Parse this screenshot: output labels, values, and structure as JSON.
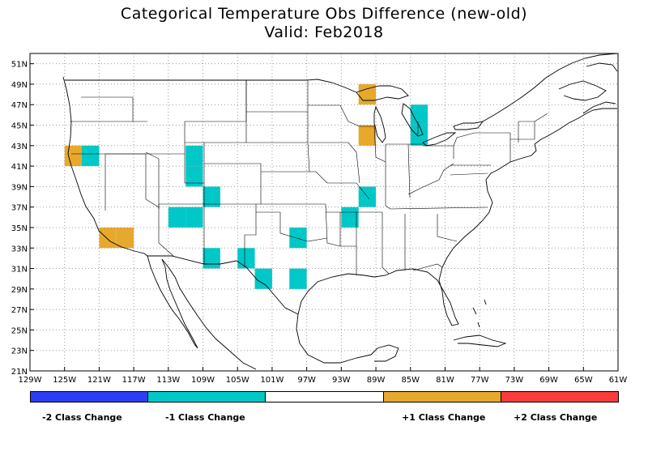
{
  "title": "Categorical Temperature Obs Difference (new-old)",
  "subtitle": "Valid: Feb2018",
  "axes": {
    "lon_labels": [
      "129W",
      "125W",
      "121W",
      "117W",
      "113W",
      "109W",
      "105W",
      "101W",
      "97W",
      "93W",
      "89W",
      "85W",
      "81W",
      "77W",
      "73W",
      "69W",
      "65W",
      "61W"
    ],
    "lat_labels": [
      "21N",
      "23N",
      "25N",
      "27N",
      "29N",
      "31N",
      "33N",
      "35N",
      "37N",
      "39N",
      "41N",
      "43N",
      "45N",
      "47N",
      "49N",
      "51N"
    ],
    "lon_range": [
      -129,
      -61
    ],
    "lat_range": [
      21,
      52
    ],
    "grid": "dotted"
  },
  "legend": {
    "items": [
      {
        "label": "-2 Class Change",
        "color": "#2a3ff5"
      },
      {
        "label": "-1 Class Change",
        "color": "#00c8c8"
      },
      {
        "label": "",
        "color": "#ffffff"
      },
      {
        "label": "+1 Class Change",
        "color": "#e6a82d"
      },
      {
        "label": "+2 Class Change",
        "color": "#fa3c3c"
      }
    ]
  },
  "cells": [
    {
      "lon": -124,
      "lat": 42,
      "category": 1
    },
    {
      "lon": -122,
      "lat": 42,
      "category": -1
    },
    {
      "lon": -120,
      "lat": 34,
      "category": 1
    },
    {
      "lon": -118,
      "lat": 34,
      "category": 1
    },
    {
      "lon": -112,
      "lat": 36,
      "category": -1
    },
    {
      "lon": -110,
      "lat": 36,
      "category": -1
    },
    {
      "lon": -110,
      "lat": 42,
      "category": -1
    },
    {
      "lon": -110,
      "lat": 40,
      "category": -1
    },
    {
      "lon": -108,
      "lat": 38,
      "category": -1
    },
    {
      "lon": -108,
      "lat": 32,
      "category": -1
    },
    {
      "lon": -104,
      "lat": 32,
      "category": -1
    },
    {
      "lon": -102,
      "lat": 30,
      "category": -1
    },
    {
      "lon": -98,
      "lat": 34,
      "category": -1
    },
    {
      "lon": -98,
      "lat": 30,
      "category": -1
    },
    {
      "lon": -92,
      "lat": 36,
      "category": -1
    },
    {
      "lon": -90,
      "lat": 38,
      "category": -1
    },
    {
      "lon": -90,
      "lat": 48,
      "category": 1
    },
    {
      "lon": -90,
      "lat": 44,
      "category": 1
    },
    {
      "lon": -84,
      "lat": 46,
      "category": -1
    },
    {
      "lon": -84,
      "lat": 44,
      "category": -1
    }
  ]
}
